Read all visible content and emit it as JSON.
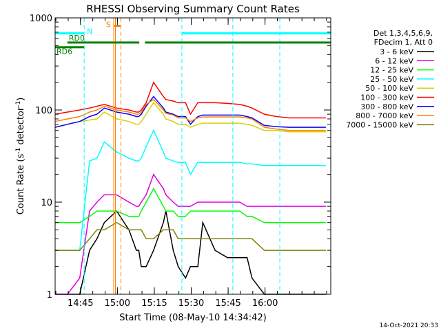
{
  "chart_data": {
    "type": "line",
    "title": "RHESSI Observing Summary Count Rates",
    "xlabel": "Start Time (08-May-10 14:34:42)",
    "ylabel_main": "Count Rate (s",
    "ylabel_sup1": "-1",
    "ylabel_mid": " detector",
    "ylabel_sup2": "-1",
    "ylabel_end": ")",
    "x_start": "14:34:42",
    "x_range_min": [
      0,
      112
    ],
    "y_scale": "log",
    "ylim": [
      1,
      1000
    ],
    "x_ticks": [
      {
        "label": "14:45",
        "min": 10.3
      },
      {
        "label": "15:00",
        "min": 25.3
      },
      {
        "label": "15:15",
        "min": 40.3
      },
      {
        "label": "15:30",
        "min": 55.3
      },
      {
        "label": "15:45",
        "min": 70.3
      },
      {
        "label": "16:00",
        "min": 85.3
      }
    ],
    "y_ticks": [
      {
        "label": "1",
        "value": 1
      },
      {
        "label": "10",
        "value": 10
      },
      {
        "label": "100",
        "value": 100
      },
      {
        "label": "1000",
        "value": 1000
      }
    ],
    "legend": {
      "placement": "right",
      "header": [
        "Det 1,3,4,5,6,9,",
        "FDecim 1, Att 0"
      ]
    },
    "series": [
      {
        "name": "3 - 6 keV",
        "color": "#000000",
        "x": [
          0,
          5,
          10,
          14,
          17,
          20,
          25,
          30,
          33,
          34,
          35,
          37,
          40,
          44,
          45,
          48,
          50,
          53,
          55,
          58,
          60,
          65,
          70,
          75,
          78,
          80,
          85,
          90,
          95,
          96,
          100,
          105,
          110
        ],
        "y": [
          1,
          1,
          1,
          3,
          4,
          6,
          8,
          5,
          3,
          3,
          2,
          2,
          3,
          6,
          8,
          3,
          2,
          1.5,
          2,
          2,
          6,
          3,
          2.5,
          2.5,
          2.5,
          1.5,
          1,
          1,
          1,
          1,
          1,
          1,
          1
        ]
      },
      {
        "name": "6 - 12 keV",
        "color": "#e000e0",
        "x": [
          0,
          5,
          10,
          14,
          17,
          20,
          25,
          30,
          33,
          34,
          35,
          37,
          40,
          44,
          45,
          48,
          50,
          53,
          55,
          58,
          60,
          65,
          70,
          75,
          78,
          80,
          85,
          90,
          95,
          96,
          100,
          105,
          110
        ],
        "y": [
          1,
          1,
          1.5,
          8,
          10,
          12,
          12,
          10,
          9,
          9,
          10,
          12,
          20,
          14,
          12,
          10,
          9,
          9,
          9,
          10,
          10,
          10,
          10,
          10,
          9,
          9,
          9,
          9,
          9,
          9,
          9,
          9,
          9
        ]
      },
      {
        "name": "12 - 25 keV",
        "color": "#00ff00",
        "x": [
          0,
          5,
          10,
          14,
          17,
          20,
          25,
          30,
          33,
          34,
          35,
          37,
          40,
          44,
          45,
          48,
          50,
          53,
          55,
          58,
          60,
          65,
          70,
          75,
          78,
          80,
          85,
          90,
          95,
          96,
          100,
          105,
          110
        ],
        "y": [
          6,
          6,
          6,
          7,
          8,
          8,
          8,
          7,
          7,
          7,
          8,
          10,
          14,
          9,
          8,
          8,
          7,
          7,
          8,
          8,
          8,
          8,
          8,
          8,
          7,
          7,
          6,
          6,
          6,
          6,
          6,
          6,
          6
        ]
      },
      {
        "name": "25 - 50 keV",
        "color": "#00ffff",
        "x": [
          0,
          5,
          10,
          14,
          17,
          20,
          25,
          30,
          33,
          34,
          35,
          37,
          40,
          44,
          45,
          48,
          50,
          53,
          55,
          58,
          60,
          65,
          70,
          75,
          78,
          80,
          85,
          90,
          95,
          96,
          100,
          105,
          110
        ],
        "y": [
          3,
          3,
          3,
          28,
          30,
          45,
          35,
          30,
          28,
          28,
          30,
          40,
          60,
          35,
          30,
          28,
          27,
          27,
          20,
          27,
          27,
          27,
          27,
          27,
          26,
          26,
          25,
          25,
          25,
          25,
          25,
          25,
          25
        ]
      },
      {
        "name": "50 - 100 keV",
        "color": "#d8d000",
        "x": [
          0,
          5,
          10,
          14,
          17,
          20,
          25,
          30,
          33,
          34,
          35,
          37,
          40,
          44,
          45,
          48,
          50,
          53,
          55,
          58,
          60,
          65,
          70,
          75,
          78,
          80,
          85,
          90,
          95,
          96,
          100,
          105,
          110
        ],
        "y": [
          65,
          70,
          75,
          78,
          80,
          95,
          80,
          75,
          70,
          70,
          75,
          90,
          120,
          90,
          80,
          75,
          70,
          70,
          65,
          70,
          72,
          72,
          72,
          72,
          70,
          68,
          60,
          60,
          58,
          58,
          58,
          58,
          58
        ]
      },
      {
        "name": "100 - 300 keV",
        "color": "#ff0000",
        "x": [
          0,
          5,
          10,
          14,
          17,
          20,
          25,
          30,
          33,
          34,
          35,
          37,
          40,
          44,
          45,
          48,
          50,
          53,
          55,
          58,
          60,
          65,
          70,
          75,
          78,
          80,
          85,
          90,
          95,
          96,
          100,
          105,
          110
        ],
        "y": [
          90,
          95,
          100,
          105,
          110,
          115,
          105,
          100,
          95,
          95,
          100,
          120,
          200,
          140,
          130,
          125,
          120,
          120,
          90,
          120,
          120,
          120,
          118,
          115,
          110,
          105,
          90,
          85,
          82,
          82,
          82,
          82,
          82
        ]
      },
      {
        "name": "300 - 800 keV",
        "color": "#0000ff",
        "x": [
          0,
          5,
          10,
          14,
          17,
          20,
          25,
          30,
          33,
          34,
          35,
          37,
          40,
          44,
          45,
          48,
          50,
          53,
          55,
          58,
          60,
          65,
          70,
          75,
          78,
          80,
          85,
          90,
          95,
          96,
          100,
          105,
          110
        ],
        "y": [
          65,
          70,
          75,
          85,
          90,
          105,
          95,
          90,
          85,
          85,
          90,
          110,
          140,
          105,
          95,
          90,
          85,
          85,
          70,
          85,
          88,
          88,
          88,
          88,
          85,
          82,
          68,
          66,
          65,
          65,
          65,
          65,
          65
        ]
      },
      {
        "name": "800 - 7000 keV",
        "color": "#ff8000",
        "x": [
          0,
          5,
          10,
          14,
          17,
          20,
          25,
          30,
          33,
          34,
          35,
          37,
          40,
          44,
          45,
          48,
          50,
          53,
          55,
          58,
          60,
          65,
          70,
          75,
          78,
          80,
          85,
          90,
          95,
          96,
          100,
          105,
          110
        ],
        "y": [
          75,
          80,
          85,
          95,
          100,
          110,
          100,
          95,
          90,
          90,
          95,
          115,
          130,
          100,
          92,
          88,
          82,
          82,
          75,
          82,
          84,
          84,
          84,
          84,
          82,
          80,
          65,
          62,
          60,
          60,
          60,
          60,
          60
        ]
      },
      {
        "name": "7000 - 15000 keV",
        "color": "#808000",
        "x": [
          0,
          5,
          10,
          14,
          17,
          20,
          25,
          30,
          33,
          34,
          35,
          37,
          40,
          44,
          45,
          48,
          50,
          53,
          55,
          58,
          60,
          65,
          70,
          75,
          78,
          80,
          85,
          90,
          95,
          96,
          100,
          105,
          110
        ],
        "y": [
          3,
          3,
          3,
          4,
          5,
          5,
          6,
          5,
          5,
          5,
          5,
          4,
          4,
          5,
          5,
          5,
          4,
          4,
          4,
          4,
          4,
          4,
          4,
          4,
          4,
          4,
          3,
          3,
          3,
          3,
          3,
          3,
          3
        ]
      }
    ],
    "annotations": {
      "saa": [
        {
          "label": "",
          "color": "#00ffff",
          "x": [
            0,
            11.8
          ],
          "y": 680
        },
        {
          "label": "",
          "color": "#00ffff",
          "x": [
            51.5,
            112
          ],
          "y": 680
        }
      ],
      "night": [
        {
          "label": "N",
          "color": "#00ffff",
          "x": 11.8,
          "y": 680
        }
      ],
      "attenuator": [
        {
          "label": "RD0",
          "color": "#008000",
          "x": [
            5,
            34.2
          ],
          "y": 540
        },
        {
          "label": "RD6",
          "color": "#008000",
          "x": [
            0,
            11.8
          ],
          "y": 480
        }
      ],
      "flare": [
        {
          "label": "S",
          "color": "#ff8000",
          "x": [
            24,
            26.5
          ],
          "y": 820
        }
      ],
      "vertical_lines": [
        {
          "x": 11.8,
          "color": "#00ffff",
          "style": "dashed"
        },
        {
          "x": 23.8,
          "color": "#ff8000",
          "style": "solid"
        },
        {
          "x": 24.5,
          "color": "#ff8000",
          "style": "solid"
        },
        {
          "x": 26.7,
          "color": "#ff8000",
          "style": "dashed"
        },
        {
          "x": 51.5,
          "color": "#00ffff",
          "style": "dashed"
        },
        {
          "x": 72.2,
          "color": "#00ffff",
          "style": "dashed"
        },
        {
          "x": 91.3,
          "color": "#00ffff",
          "style": "dashed"
        }
      ]
    }
  },
  "footer": {
    "date": "14-Oct-2021 20:33"
  }
}
